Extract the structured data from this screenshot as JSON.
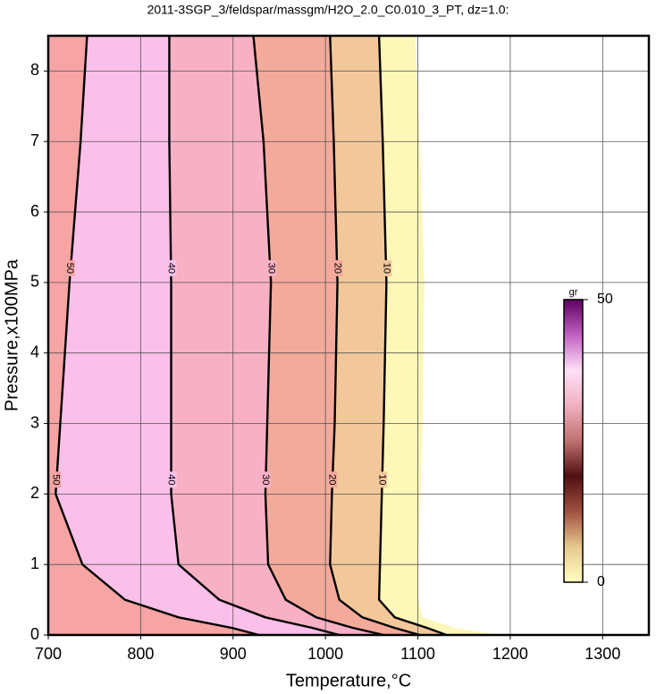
{
  "chart_data": {
    "type": "contour",
    "title": "2011-3SGP_3/feldspar/massgm/H2O_2.0_C0.010_3_PT, dz=1.0:",
    "x_label": "Temperature,°C",
    "y_label": "Pressure,x100MPa",
    "xlim": [
      700,
      1350
    ],
    "ylim": [
      0,
      8.5
    ],
    "xticks": [
      700,
      800,
      900,
      1000,
      1100,
      1200,
      1300
    ],
    "yticks": [
      0,
      1,
      2,
      3,
      4,
      5,
      6,
      7,
      8
    ],
    "grid": true,
    "contours": [
      {
        "level": 0,
        "color": "#fdf7b8",
        "x": [
          1097,
          1102,
          1107,
          1105,
          1103,
          1100,
          1100,
          1105,
          1140,
          1189
        ],
        "y": [
          8.5,
          7,
          5,
          3,
          2,
          1,
          0.5,
          0.25,
          0.1,
          0
        ]
      },
      {
        "level": 10,
        "color": "#f2c89a",
        "x": [
          1058,
          1062,
          1066,
          1063,
          1061,
          1059,
          1058,
          1075,
          1110,
          1131
        ],
        "y": [
          8.5,
          7,
          5,
          3,
          2,
          1,
          0.5,
          0.25,
          0.1,
          0
        ]
      },
      {
        "level": 20,
        "color": "#f4aa9a",
        "x": [
          1005,
          1009,
          1013,
          1010,
          1007,
          1005,
          1015,
          1040,
          1075,
          1102
        ],
        "y": [
          8.5,
          7,
          5,
          3,
          2,
          1,
          0.5,
          0.25,
          0.1,
          0
        ]
      },
      {
        "level": 30,
        "color": "#f8b0c4",
        "x": [
          922,
          933,
          941,
          937,
          935,
          938,
          957,
          990,
          1030,
          1063
        ],
        "y": [
          8.5,
          7,
          5,
          3,
          2,
          1,
          0.5,
          0.25,
          0.1,
          0
        ]
      },
      {
        "level": 40,
        "color": "#fbc0ea",
        "x": [
          831,
          831,
          833,
          833,
          833,
          841,
          885,
          935,
          986,
          1015
        ],
        "y": [
          8.5,
          7,
          5,
          3,
          2,
          1,
          0.5,
          0.25,
          0.1,
          0
        ]
      },
      {
        "level": 50,
        "color": "#f6a4a4",
        "x": [
          742,
          735,
          723,
          713,
          708,
          737,
          783,
          841,
          899,
          928
        ],
        "y": [
          8.5,
          7,
          5,
          3,
          2,
          1,
          0.5,
          0.25,
          0.1,
          0
        ]
      }
    ],
    "colorbar": {
      "label": "gr",
      "ticks": [
        0,
        50
      ],
      "colors": [
        "#ffffc0",
        "#e8c890",
        "#a05040",
        "#501010",
        "#c07070",
        "#f0b0c0",
        "#ffe0f8",
        "#c060c0",
        "#600060"
      ]
    }
  }
}
